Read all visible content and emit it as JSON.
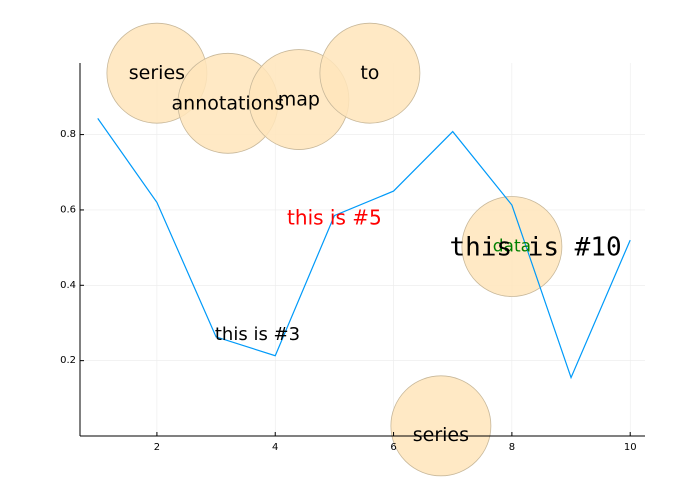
{
  "chart_data": {
    "type": "line",
    "title": "",
    "xlabel": "",
    "ylabel": "",
    "xlim": [
      0.7,
      10.25
    ],
    "ylim": [
      0.0,
      0.99
    ],
    "grid": true,
    "legend": "none",
    "x_ticks": [
      "2",
      "4",
      "6",
      "8",
      "10"
    ],
    "y_ticks": [
      "0.2",
      "0.4",
      "0.6",
      "0.8"
    ],
    "series": [
      {
        "color": "#009af9",
        "x": [
          1,
          2,
          3,
          4,
          5,
          6,
          7,
          8,
          9,
          10
        ],
        "y": [
          0.843,
          0.62,
          0.263,
          0.213,
          0.585,
          0.65,
          0.808,
          0.613,
          0.155,
          0.52
        ]
      }
    ],
    "bubbles": [
      {
        "label": "series",
        "x": 2.0,
        "y": 0.963,
        "label_dy": 0
      },
      {
        "label": "annotations",
        "x": 3.2,
        "y": 0.883,
        "label_dy": 0
      },
      {
        "label": "map",
        "x": 4.4,
        "y": 0.893,
        "label_dy": 0
      },
      {
        "label": "to",
        "x": 5.6,
        "y": 0.963,
        "label_dy": 0
      },
      {
        "label": "data",
        "x": 8.0,
        "y": 0.503,
        "label_dy": 0
      },
      {
        "label": "series",
        "x": 6.8,
        "y": 0.027,
        "label_dy": -0.025
      }
    ],
    "bubble_fill": "#ffe5bb",
    "bubble_stroke": "#c8b89a",
    "data_label_color": "#008000",
    "annotations": [
      {
        "text": "this is #3",
        "x": 3.7,
        "y": 0.27,
        "color": "#000000",
        "font": "sans",
        "size": 18
      },
      {
        "text": "this is #5",
        "x": 5.0,
        "y": 0.58,
        "color": "#ff0000",
        "font": "sans",
        "size": 20
      },
      {
        "text": "this is #10",
        "x": 8.4,
        "y": 0.5,
        "color": "#000000",
        "font": "mono",
        "size": 26
      }
    ]
  }
}
